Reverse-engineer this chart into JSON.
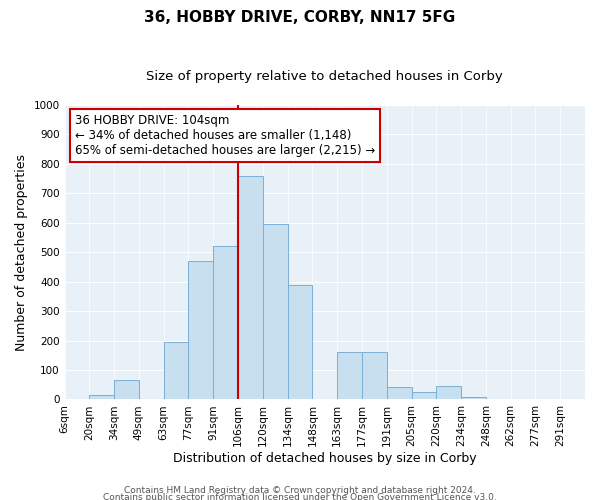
{
  "title": "36, HOBBY DRIVE, CORBY, NN17 5FG",
  "subtitle": "Size of property relative to detached houses in Corby",
  "xlabel": "Distribution of detached houses by size in Corby",
  "ylabel": "Number of detached properties",
  "bar_labels": [
    "6sqm",
    "20sqm",
    "34sqm",
    "49sqm",
    "63sqm",
    "77sqm",
    "91sqm",
    "106sqm",
    "120sqm",
    "134sqm",
    "148sqm",
    "163sqm",
    "177sqm",
    "191sqm",
    "205sqm",
    "220sqm",
    "234sqm",
    "248sqm",
    "262sqm",
    "277sqm",
    "291sqm"
  ],
  "bar_values": [
    0,
    15,
    65,
    0,
    195,
    470,
    520,
    760,
    595,
    390,
    0,
    160,
    160,
    42,
    25,
    45,
    10,
    0,
    0,
    0,
    0
  ],
  "bar_color": "#c8dff0",
  "bar_edge_color": "#7bafd4",
  "plot_bg_color": "#e8f0f8",
  "grid_color": "#ffffff",
  "vline_color": "#cc0000",
  "vline_x_index": 7,
  "annotation_text": "36 HOBBY DRIVE: 104sqm\n← 34% of detached houses are smaller (1,148)\n65% of semi-detached houses are larger (2,215) →",
  "annotation_box_color": "white",
  "annotation_box_edge": "#cc0000",
  "ylim": [
    0,
    1000
  ],
  "yticks": [
    0,
    100,
    200,
    300,
    400,
    500,
    600,
    700,
    800,
    900,
    1000
  ],
  "footer1": "Contains HM Land Registry data © Crown copyright and database right 2024.",
  "footer2": "Contains public sector information licensed under the Open Government Licence v3.0.",
  "title_fontsize": 11,
  "subtitle_fontsize": 9.5,
  "xlabel_fontsize": 9,
  "ylabel_fontsize": 9,
  "tick_fontsize": 7.5,
  "annotation_fontsize": 8.5,
  "footer_fontsize": 6.5
}
